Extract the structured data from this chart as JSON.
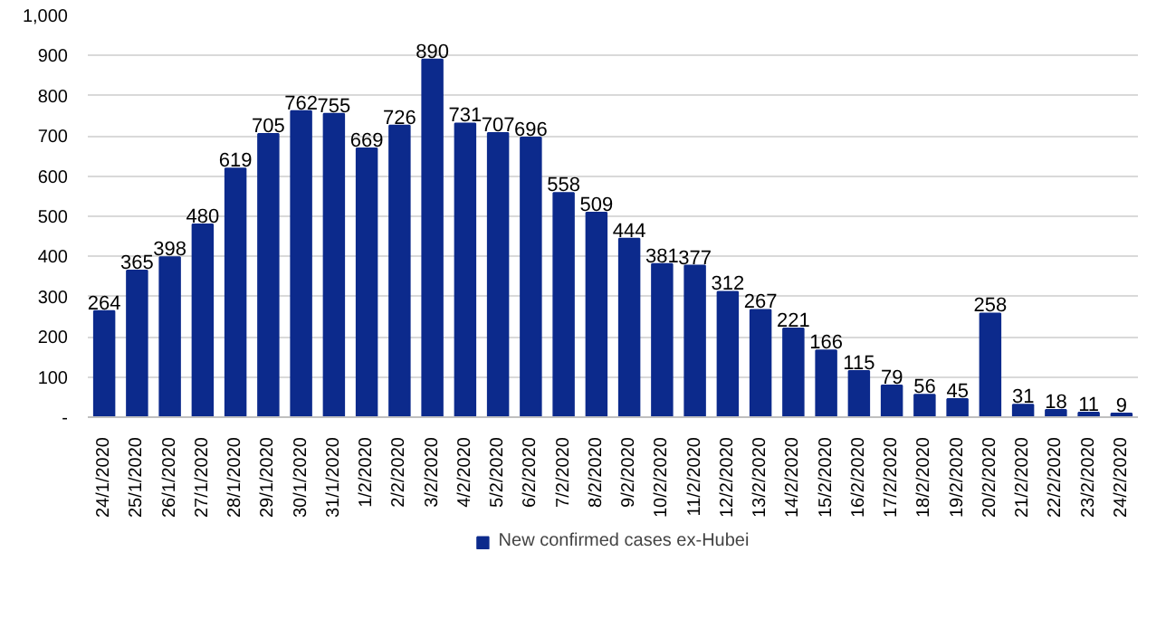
{
  "chart_data": {
    "type": "bar",
    "categories": [
      "24/1/2020",
      "25/1/2020",
      "26/1/2020",
      "27/1/2020",
      "28/1/2020",
      "29/1/2020",
      "30/1/2020",
      "31/1/2020",
      "1/2/2020",
      "2/2/2020",
      "3/2/2020",
      "4/2/2020",
      "5/2/2020",
      "6/2/2020",
      "7/2/2020",
      "8/2/2020",
      "9/2/2020",
      "10/2/2020",
      "11/2/2020",
      "12/2/2020",
      "13/2/2020",
      "14/2/2020",
      "15/2/2020",
      "16/2/2020",
      "17/2/2020",
      "18/2/2020",
      "19/2/2020",
      "20/2/2020",
      "21/2/2020",
      "22/2/2020",
      "23/2/2020",
      "24/2/2020"
    ],
    "series": [
      {
        "name": "New confirmed cases ex-Hubei",
        "color": "#0c2a8c",
        "values": [
          264,
          365,
          398,
          480,
          619,
          705,
          762,
          755,
          669,
          726,
          890,
          731,
          707,
          696,
          558,
          509,
          444,
          381,
          377,
          312,
          267,
          221,
          166,
          115,
          79,
          56,
          45,
          258,
          31,
          18,
          11,
          9
        ]
      }
    ],
    "ylim": [
      0,
      1000
    ],
    "yticks": [
      {
        "value": 0,
        "label": "-"
      },
      100,
      200,
      300,
      400,
      500,
      600,
      700,
      800,
      900,
      {
        "value": 1000,
        "label": "1,000"
      }
    ],
    "grid": "y",
    "legend": "bottom",
    "data_labels": true
  }
}
